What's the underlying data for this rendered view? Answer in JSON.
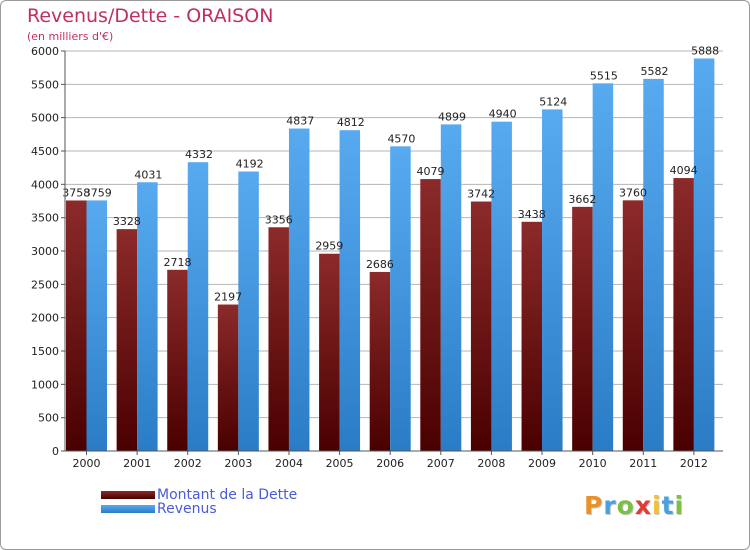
{
  "chart_data": {
    "type": "bar",
    "title": "Revenus/Dette - ORAISON",
    "subtitle": "(en milliers d'€)",
    "categories": [
      "2000",
      "2001",
      "2002",
      "2003",
      "2004",
      "2005",
      "2006",
      "2007",
      "2008",
      "2009",
      "2010",
      "2011",
      "2012"
    ],
    "series": [
      {
        "name": "Montant de la Dette",
        "color": "#6e1212",
        "values": [
          3758,
          3328,
          2718,
          2197,
          3356,
          2959,
          2686,
          4079,
          3742,
          3438,
          3662,
          3760,
          4094
        ]
      },
      {
        "name": "Revenus",
        "color": "#3d93dc",
        "values": [
          3759,
          4031,
          4332,
          4192,
          4837,
          4812,
          4570,
          4899,
          4940,
          5124,
          5515,
          5582,
          5888
        ]
      }
    ],
    "ylim": [
      0,
      6000
    ],
    "yticks": [
      0,
      500,
      1000,
      1500,
      2000,
      2500,
      3000,
      3500,
      4000,
      4500,
      5000,
      5500,
      6000
    ],
    "grid": true,
    "legend": "bottom-left"
  },
  "logo": {
    "letters": [
      "P",
      "r",
      "o",
      "x",
      "i",
      "t",
      "i"
    ],
    "colors": [
      "#e8912a",
      "#4aa0de",
      "#7cc043",
      "#e23b36",
      "#f2c12e",
      "#4aa0de",
      "#7cc043"
    ]
  }
}
